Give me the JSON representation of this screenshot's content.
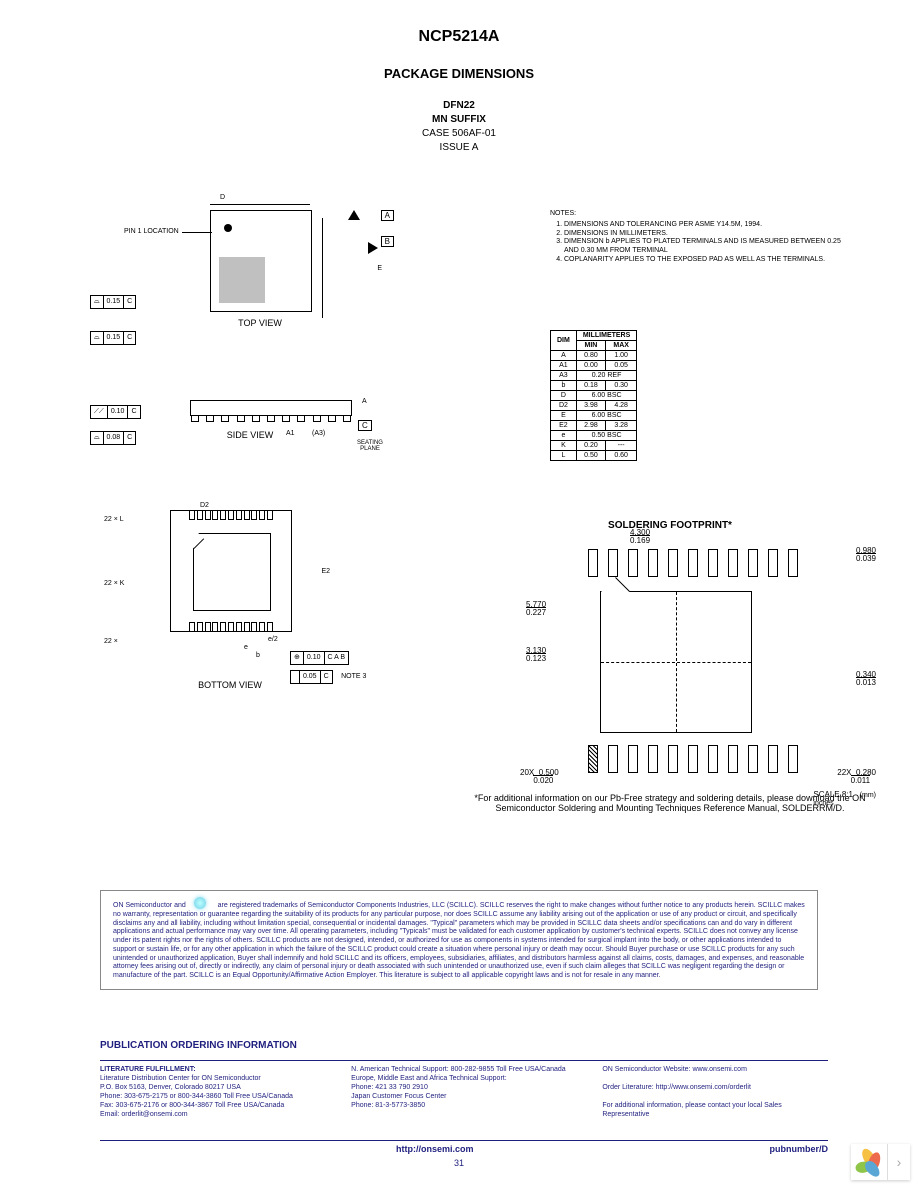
{
  "header": {
    "part_number": "NCP5214A",
    "section_title": "PACKAGE DIMENSIONS",
    "package_name": "DFN22",
    "suffix": "MN SUFFIX",
    "case_code": "CASE 506AF-01",
    "issue": "ISSUE A"
  },
  "top_view": {
    "label": "TOP VIEW",
    "pin1_label": "PIN 1 LOCATION",
    "dim_D": "D",
    "dim_E": "E",
    "datum_A": "A",
    "datum_B": "B",
    "gdt_rows": [
      {
        "sym": "⌓",
        "tol": "0.15",
        "ref": "C"
      },
      {
        "sym": "⌓",
        "tol": "0.15",
        "ref": "C"
      }
    ]
  },
  "side_view": {
    "label": "SIDE VIEW",
    "A": "A",
    "A1": "A1",
    "A3": "(A3)",
    "seating": "SEATING PLANE",
    "datum": "C",
    "gdt_rows": [
      {
        "sym": "⟋⟋",
        "tol": "0.10",
        "ref": "C"
      },
      {
        "sym": "⌓",
        "tol": "0.08",
        "ref": "C"
      }
    ]
  },
  "bottom_view": {
    "label": "BOTTOM VIEW",
    "count22": "22 ×",
    "L": "L",
    "K": "K",
    "D2": "D2",
    "E2": "E2",
    "e": "e",
    "e2": "e/2",
    "b": "b",
    "gdt_rows": [
      {
        "sym": "⊕",
        "tol": "0.10",
        "refs": "C A B"
      },
      {
        "sym": "",
        "tol": "0.05",
        "refs": "C"
      }
    ],
    "note_ref": "NOTE 3"
  },
  "notes": {
    "title": "NOTES:",
    "items": [
      "DIMENSIONS AND TOLERANCING PER ASME Y14.5M, 1994.",
      "DIMENSIONS IN MILLIMETERS.",
      "DIMENSION b APPLIES TO PLATED TERMINALS AND IS MEASURED BETWEEN 0.25 AND 0.30 MM FROM TERMINAL",
      "COPLANARITY APPLIES TO THE EXPOSED PAD AS WELL AS THE TERMINALS."
    ]
  },
  "dim_table": {
    "unit_header": "MILLIMETERS",
    "cols": [
      "DIM",
      "MIN",
      "MAX"
    ],
    "rows": [
      [
        "A",
        "0.80",
        "1.00"
      ],
      [
        "A1",
        "0.00",
        "0.05"
      ],
      [
        "A3",
        "0.20 REF",
        ""
      ],
      [
        "b",
        "0.18",
        "0.30"
      ],
      [
        "D",
        "6.00 BSC",
        ""
      ],
      [
        "D2",
        "3.98",
        "4.28"
      ],
      [
        "E",
        "6.00 BSC",
        ""
      ],
      [
        "E2",
        "2.98",
        "3.28"
      ],
      [
        "e",
        "0.50 BSC",
        ""
      ],
      [
        "K",
        "0.20",
        "---"
      ],
      [
        "L",
        "0.50",
        "0.60"
      ]
    ]
  },
  "soldering": {
    "title": "SOLDERING FOOTPRINT*",
    "dims": {
      "w": {
        "mm": "4.300",
        "in": "0.169"
      },
      "pin_h": {
        "mm": "0.980",
        "in": "0.039"
      },
      "h": {
        "mm": "5.770",
        "in": "0.227"
      },
      "pad_h": {
        "mm": "3.130",
        "in": "0.123"
      },
      "line_w": {
        "mm": "0.340",
        "in": "0.013"
      },
      "pitch20": {
        "count": "20X",
        "mm": "0.500",
        "in": "0.020"
      },
      "pin_w22": {
        "count": "22X",
        "mm": "0.280",
        "in": "0.011"
      }
    },
    "scale_label": "SCALE 8:1",
    "scale_units_mm": "mm",
    "scale_units_in": "inches",
    "footnote": "*For additional information on our Pb-Free strategy and soldering details, please download the ON Semiconductor Soldering and Mounting Techniques Reference Manual, SOLDERRM/D."
  },
  "disclaimer": {
    "text_parts": [
      "ON Semiconductor and ",
      " are registered trademarks of Semiconductor Components Industries, LLC (SCILLC). SCILLC reserves the right to make changes without further notice to any products herein. SCILLC makes no warranty, representation or guarantee regarding the suitability of its products for any particular purpose, nor does SCILLC assume any liability arising out of the application or use of any product or circuit, and specifically disclaims any and all liability, including without limitation special, consequential or incidental damages. \"Typical\" parameters which may be provided in SCILLC data sheets and/or specifications can and do vary in different applications and actual performance may vary over time. All operating parameters, including \"Typicals\" must be validated for each customer application by customer's technical experts. SCILLC does not convey any license under its patent rights nor the rights of others. SCILLC products are not designed, intended, or authorized for use as components in systems intended for surgical implant into the body, or other applications intended to support or sustain life, or for any other application in which the failure of the SCILLC product could create a situation where personal injury or death may occur. Should Buyer purchase or use SCILLC products for any such unintended or unauthorized application, Buyer shall indemnify and hold SCILLC and its officers, employees, subsidiaries, affiliates, and distributors harmless against all claims, costs, damages, and expenses, and reasonable attorney fees arising out of, directly or indirectly, any claim of personal injury or death associated with such unintended or unauthorized use, even if such claim alleges that SCILLC was negligent regarding the design or manufacture of the part. SCILLC is an Equal Opportunity/Affirmative Action Employer. This literature is subject to all applicable copyright laws and is not for resale in any manner."
    ]
  },
  "ordering": {
    "title": "PUBLICATION ORDERING INFORMATION",
    "col1": {
      "heading": "LITERATURE FULFILLMENT:",
      "lines": [
        "Literature Distribution Center for ON Semiconductor",
        "P.O. Box 5163, Denver, Colorado 80217 USA",
        "Phone: 303-675-2175 or 800-344-3860 Toll Free USA/Canada",
        "Fax: 303-675-2176 or 800-344-3867 Toll Free USA/Canada",
        "Email: orderlit@onsemi.com"
      ]
    },
    "col2": {
      "lines": [
        "N. American Technical Support: 800-282-9855 Toll Free USA/Canada",
        "Europe, Middle East and Africa Technical Support:",
        "Phone: 421 33 790 2910",
        "Japan Customer Focus Center",
        "Phone: 81-3-5773-3850"
      ]
    },
    "col3": {
      "lines": [
        "ON Semiconductor Website: www.onsemi.com",
        "",
        "Order Literature: http://www.onsemi.com/orderlit",
        "",
        "For additional information, please contact your local Sales Representative"
      ]
    }
  },
  "footer": {
    "url": "http://onsemi.com",
    "pubnum": "pubnumber/D",
    "page": "31"
  },
  "widget": {
    "arrow": "›"
  },
  "colors": {
    "text_blue": "#1f1f7f",
    "shade": "#c0c0c0"
  }
}
